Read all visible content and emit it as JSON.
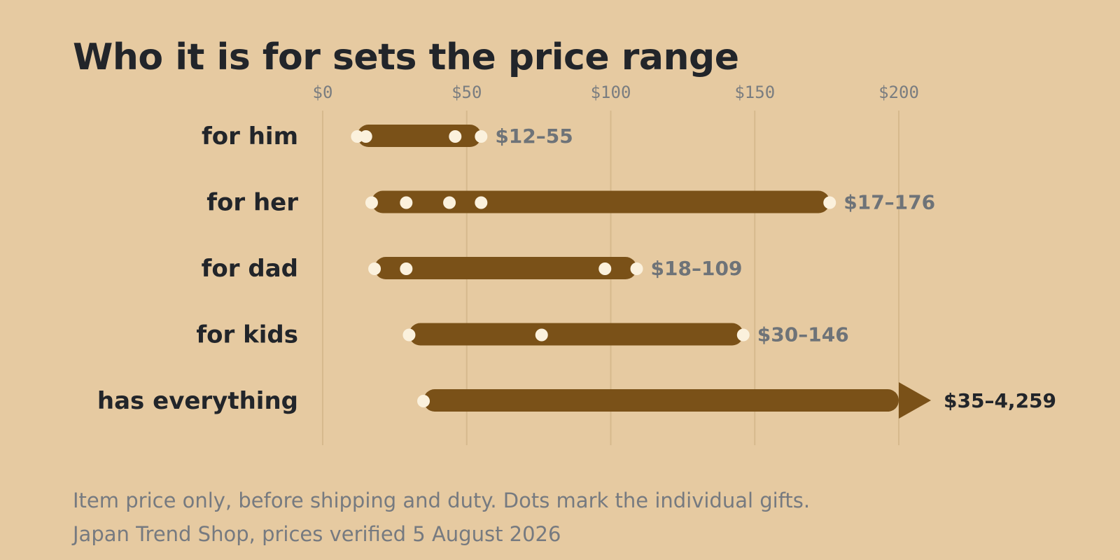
{
  "title": "Who it is for sets the price range",
  "notes": {
    "line1": "Item price only, before shipping and duty. Dots mark the individual gifts.",
    "line2": "Japan Trend Shop, prices verified 5 August 2026"
  },
  "colors": {
    "background": "#e6caa1",
    "bar": "#7a5118",
    "dot": "#fbf1dd",
    "grid": "#d6b98d"
  },
  "chart_data": {
    "type": "range",
    "title": "Who it is for sets the price range",
    "xlim": [
      0,
      200
    ],
    "x_ticks": [
      0,
      50,
      100,
      150,
      200
    ],
    "x_tick_labels": [
      "$0",
      "$50",
      "$100",
      "$150",
      "$200"
    ],
    "grid": true,
    "rows": [
      {
        "category": "for him",
        "min": 12,
        "max": 55,
        "label": "$12–55",
        "dots": [
          12,
          15,
          46,
          55
        ]
      },
      {
        "category": "for her",
        "min": 17,
        "max": 176,
        "label": "$17–176",
        "dots": [
          17,
          29,
          44,
          55,
          176
        ]
      },
      {
        "category": "for dad",
        "min": 18,
        "max": 109,
        "label": "$18–109",
        "dots": [
          18,
          29,
          98,
          109
        ]
      },
      {
        "category": "for kids",
        "min": 30,
        "max": 146,
        "label": "$30–146",
        "dots": [
          30,
          76,
          146
        ]
      },
      {
        "category": "has everything",
        "min": 35,
        "max": 4259,
        "label": "$35–4,259",
        "dots": [
          35
        ],
        "overflow": true
      }
    ]
  }
}
